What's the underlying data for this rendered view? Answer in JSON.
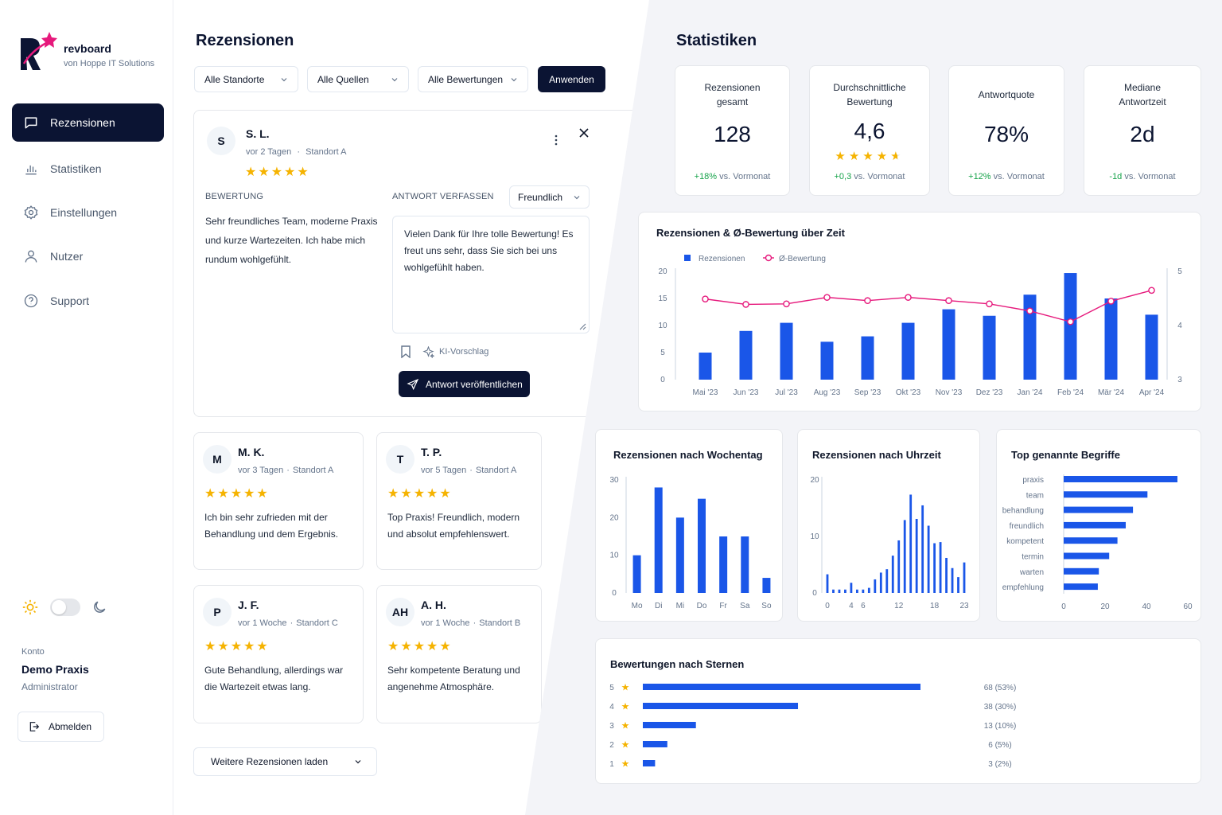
{
  "brand": {
    "name": "revboard",
    "subtitle": "von Hoppe IT Solutions"
  },
  "nav": [
    {
      "label": "Rezensionen",
      "icon": "message-square-icon",
      "active": true
    },
    {
      "label": "Statistiken",
      "icon": "bar-chart-icon",
      "active": false
    },
    {
      "label": "Einstellungen",
      "icon": "gear-icon",
      "active": false
    },
    {
      "label": "Nutzer",
      "icon": "user-icon",
      "active": false
    },
    {
      "label": "Support",
      "icon": "help-circle-icon",
      "active": false
    }
  ],
  "account": {
    "label": "Konto",
    "name": "Demo Praxis",
    "role": "Administrator",
    "logout_label": "Abmelden"
  },
  "reviews": {
    "title": "Rezensionen",
    "filters": [
      "Alle Standorte",
      "Alle Quellen",
      "Alle Bewertungen"
    ],
    "apply_label": "Anwenden",
    "expanded": {
      "initial": "S",
      "name": "S. L.",
      "time": "vor 2 Tagen",
      "location": "Standort A",
      "rating": 5,
      "rating_caption": "BEWERTUNG",
      "text": "Sehr freundliches Team, moderne Praxis und kurze Wartezeiten. Ich habe mich rundum wohlgefühlt.",
      "reply_caption": "ANTWORT VERFASSEN",
      "tone": "Freundlich",
      "reply": "Vielen Dank für Ihre tolle Bewertung! Es freut uns sehr, dass Sie sich bei uns wohlgefühlt haben.",
      "ai_label": "KI-Vorschlag",
      "publish_label": "Antwort veröffentlichen"
    },
    "cards": [
      {
        "initial": "M",
        "name": "M. K.",
        "time": "vor 3 Tagen",
        "location": "Standort A",
        "rating": 5,
        "text": "Ich bin sehr zufrieden mit der Behandlung und dem Ergebnis."
      },
      {
        "initial": "T",
        "name": "T. P.",
        "time": "vor 5 Tagen",
        "location": "Standort A",
        "rating": 5,
        "text": "Top Praxis! Freundlich, modern und absolut empfehlenswert."
      },
      {
        "initial": "P",
        "name": "J. F.",
        "time": "vor 1 Woche",
        "location": "Standort C",
        "rating": 5,
        "text": "Gute Behandlung, allerdings war die Wartezeit etwas lang."
      },
      {
        "initial": "AH",
        "name": "A. H.",
        "time": "vor 1 Woche",
        "location": "Standort B",
        "rating": 5,
        "text": "Sehr kompetente Beratung und angenehme Atmosphäre."
      }
    ],
    "load_more_label": "Weitere Rezensionen laden",
    "separator": "·"
  },
  "stats": {
    "title": "Statistiken",
    "kpis": [
      {
        "label": "Rezensionen gesamt",
        "value": "128",
        "delta": "+18%",
        "delta_suffix": "vs. Vormonat",
        "positive": true
      },
      {
        "label": "Durchschnittliche Bewertung",
        "value": "4,6",
        "delta": "+0,3",
        "delta_suffix": "vs. Vormonat",
        "positive": true,
        "stars": 4.5
      },
      {
        "label": "Antwortquote",
        "value": "78%",
        "delta": "+12%",
        "delta_suffix": "vs. Vormonat",
        "positive": true
      },
      {
        "label": "Mediane Antwortzeit",
        "value": "2d",
        "delta": "-1d",
        "delta_suffix": "vs. Vormonat",
        "positive": true
      }
    ]
  },
  "colors": {
    "accent": "#1a56e8",
    "navy": "#0b1433",
    "line": "#e6197c",
    "star": "#f5b301",
    "positive": "#16a34a"
  },
  "chart_data": [
    {
      "type": "bar",
      "title": "Rezensionen & Ø-Bewertung über Zeit",
      "categories": [
        "Mai '23",
        "Jun '23",
        "Jul '23",
        "Aug '23",
        "Sep '23",
        "Okt '23",
        "Nov '23",
        "Dez '23",
        "Jan '24",
        "Feb '24",
        "Mär '24",
        "Apr '24"
      ],
      "series": [
        {
          "name": "Rezensionen",
          "type": "bar",
          "axis": "left",
          "values": [
            5,
            9,
            10.5,
            7,
            8,
            10.5,
            13,
            11.8,
            15.7,
            19.7,
            15,
            12
          ]
        },
        {
          "name": "Ø-Bewertung",
          "type": "line",
          "axis": "right",
          "values": [
            4.49,
            4.39,
            4.4,
            4.52,
            4.46,
            4.52,
            4.46,
            4.4,
            4.27,
            4.07,
            4.45,
            4.65
          ]
        }
      ],
      "ylim": [
        0,
        20
      ],
      "yticks": [
        0,
        5,
        10,
        15,
        20
      ],
      "y2lim": [
        3,
        5
      ],
      "y2ticks": [
        3,
        4,
        5
      ],
      "legend": "top-left",
      "grid": false
    },
    {
      "type": "bar",
      "title": "Rezensionen nach Wochentag",
      "categories": [
        "Mo",
        "Di",
        "Mi",
        "Do",
        "Fr",
        "Sa",
        "So"
      ],
      "series": [
        {
          "values": [
            10,
            28,
            20,
            25,
            15,
            15,
            4
          ]
        }
      ],
      "ylim": [
        0,
        30
      ],
      "yticks": [
        0,
        10,
        20,
        30
      ]
    },
    {
      "type": "bar",
      "title": "Rezensionen nach Uhrzeit",
      "x": [
        0,
        1,
        2,
        3,
        4,
        5,
        6,
        7,
        8,
        9,
        10,
        11,
        12,
        13,
        14,
        15,
        16,
        17,
        18,
        19,
        20,
        21,
        22,
        23
      ],
      "series": [
        {
          "values": [
            3.3,
            0.6,
            0.6,
            0.6,
            1.8,
            0.6,
            0.6,
            0.9,
            2.4,
            3.6,
            4.2,
            6.6,
            9.3,
            12.9,
            17.4,
            13.1,
            15.5,
            11.9,
            8.8,
            9.0,
            6.2,
            4.4,
            2.8,
            5.4
          ]
        }
      ],
      "xticks": [
        0,
        4,
        6,
        12,
        18,
        23
      ],
      "ylim": [
        0,
        20
      ],
      "yticks": [
        0,
        10,
        20
      ]
    },
    {
      "type": "bar",
      "orientation": "horizontal",
      "title": "Top genannte Begriffe",
      "categories": [
        "praxis",
        "team",
        "behandlung",
        "freundlich",
        "kompetent",
        "termin",
        "warten",
        "empfehlung"
      ],
      "series": [
        {
          "values": [
            55,
            40.5,
            33.5,
            30,
            26,
            22,
            17,
            16.5
          ]
        }
      ],
      "xlim": [
        0,
        60
      ],
      "xticks": [
        0,
        20,
        40,
        60
      ]
    },
    {
      "type": "bar",
      "orientation": "horizontal",
      "title": "Bewertungen nach Sternen",
      "categories": [
        "5",
        "4",
        "3",
        "2",
        "1"
      ],
      "series": [
        {
          "values": [
            68,
            38,
            13,
            6,
            3
          ]
        }
      ],
      "labels": [
        "68 (53%)",
        "38 (30%)",
        "13 (10%)",
        "6 (5%)",
        "3 (2%)"
      ]
    }
  ]
}
